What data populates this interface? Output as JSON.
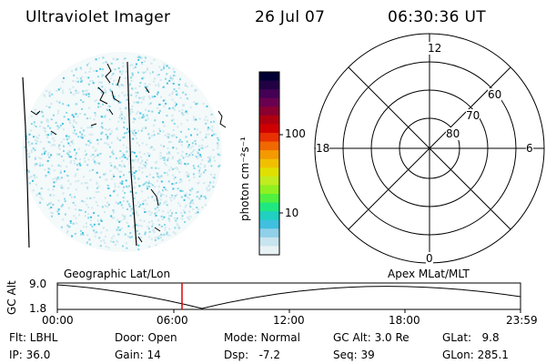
{
  "header": {
    "title": "Ultraviolet Imager",
    "date": "26 Jul 07",
    "time": "06:30:36 UT"
  },
  "colorbar": {
    "unit_label": "photon cm⁻²s⁻¹",
    "ticks": [
      "100",
      "10"
    ],
    "colors": [
      "#000033",
      "#220044",
      "#440055",
      "#6a0050",
      "#8a0030",
      "#b00010",
      "#d00000",
      "#e83000",
      "#f06800",
      "#f49a00",
      "#f0c000",
      "#e0e000",
      "#c0ec20",
      "#90f020",
      "#50f040",
      "#20e880",
      "#20d0c0",
      "#40c0e0",
      "#90d0e8",
      "#c8e4ee",
      "#e8f2f4"
    ]
  },
  "polar": {
    "mlt_labels": {
      "top": "12",
      "left": "18",
      "right": "6",
      "bottom": "0"
    },
    "lat_labels": [
      "60",
      "70",
      "80"
    ]
  },
  "timeline": {
    "left_label": "Geographic Lat/Lon",
    "right_label": "Apex MLat/MLT",
    "axis_title": "GC Alt",
    "y_labels": [
      "9.0",
      "1.8"
    ],
    "x_labels": [
      "00:00",
      "06:00",
      "12:00",
      "18:00",
      "23:59"
    ],
    "marker_time": "06:30"
  },
  "info": {
    "row1": [
      "Flt: LBHL",
      "Door: Open",
      "Mode: Normal",
      "GC Alt: 3.0 Re",
      "GLat:   9.8"
    ],
    "row2": [
      "IP: 36.0",
      "Gain: 14",
      "Dsp:   -7.2",
      "Seq: 39",
      "GLon: 285.1"
    ]
  },
  "colors": {
    "marker": "#e00000",
    "pixels": "#88d8e8"
  }
}
